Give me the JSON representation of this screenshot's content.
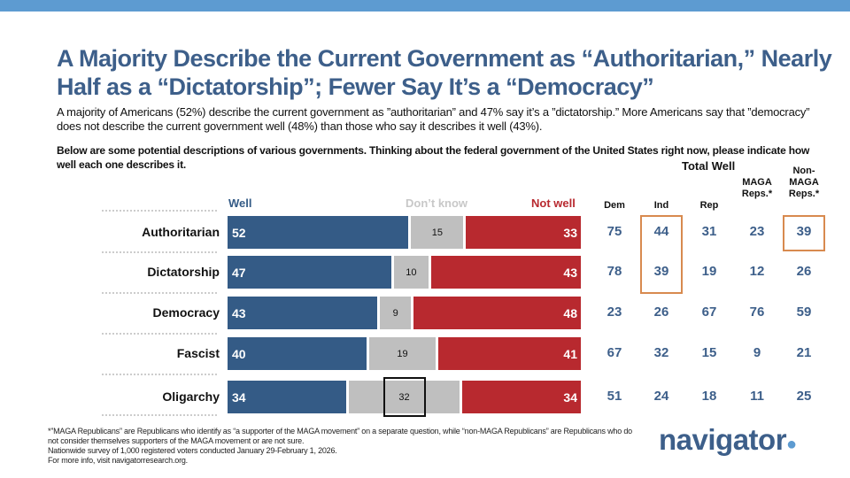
{
  "title": "A Majority Describe the Current Government as “Authoritarian,” Nearly Half as a “Dictatorship”; Fewer Say It’s a “Democracy”",
  "subtitle": "A majority of Americans (52%) describe the current government as ”authoritarian” and 47% say it’s a ”dictatorship.” More Americans say that ”democracy” does not describe the current government well (48%) than those who say it describes it well (43%).",
  "question": "Below are some potential descriptions of various governments. Thinking about the federal government of the United States right now, please indicate how well each one describes it.",
  "chart_data": {
    "type": "bar",
    "orientation": "horizontal-stacked",
    "categories": [
      "Authoritarian",
      "Dictatorship",
      "Democracy",
      "Fascist",
      "Oligarchy"
    ],
    "series": [
      {
        "name": "Well",
        "color": "#345b86",
        "values": [
          52,
          47,
          43,
          40,
          34
        ]
      },
      {
        "name": "Don’t know",
        "color": "#bfbfbf",
        "values": [
          15,
          10,
          9,
          19,
          32
        ]
      },
      {
        "name": "Not well",
        "color": "#b8292f",
        "values": [
          33,
          43,
          48,
          41,
          34
        ]
      }
    ],
    "highlighted": [
      {
        "series": "Don’t know",
        "category": "Oligarchy"
      }
    ]
  },
  "table": {
    "title": "Total Well",
    "columns": [
      "Dem",
      "Ind",
      "Rep",
      "MAGA Reps.*",
      "Non- MAGA Reps.*"
    ],
    "rows": [
      [
        75,
        44,
        31,
        23,
        39
      ],
      [
        78,
        39,
        19,
        12,
        26
      ],
      [
        23,
        26,
        67,
        76,
        59
      ],
      [
        67,
        32,
        15,
        9,
        21
      ],
      [
        51,
        24,
        18,
        11,
        25
      ]
    ],
    "highlighted": [
      {
        "column": "Ind",
        "rows": [
          "Authoritarian",
          "Dictatorship"
        ]
      },
      {
        "column": "Non- MAGA Reps.*",
        "rows": [
          "Authoritarian"
        ]
      }
    ],
    "highlight_color": "#d88a4f"
  },
  "footnote": [
    "*”MAGA Republicans” are Republicans who identify as “a supporter of the MAGA movement” on a separate question, while “non-MAGA Republicans” are Republicans who do not consider themselves supporters of the MAGA movement or are not sure.",
    "Nationwide survey of 1,000 registered voters conducted January 29-February 1, 2026.",
    "For more info, visit navigatorresearch.org."
  ],
  "logo": "navigator"
}
